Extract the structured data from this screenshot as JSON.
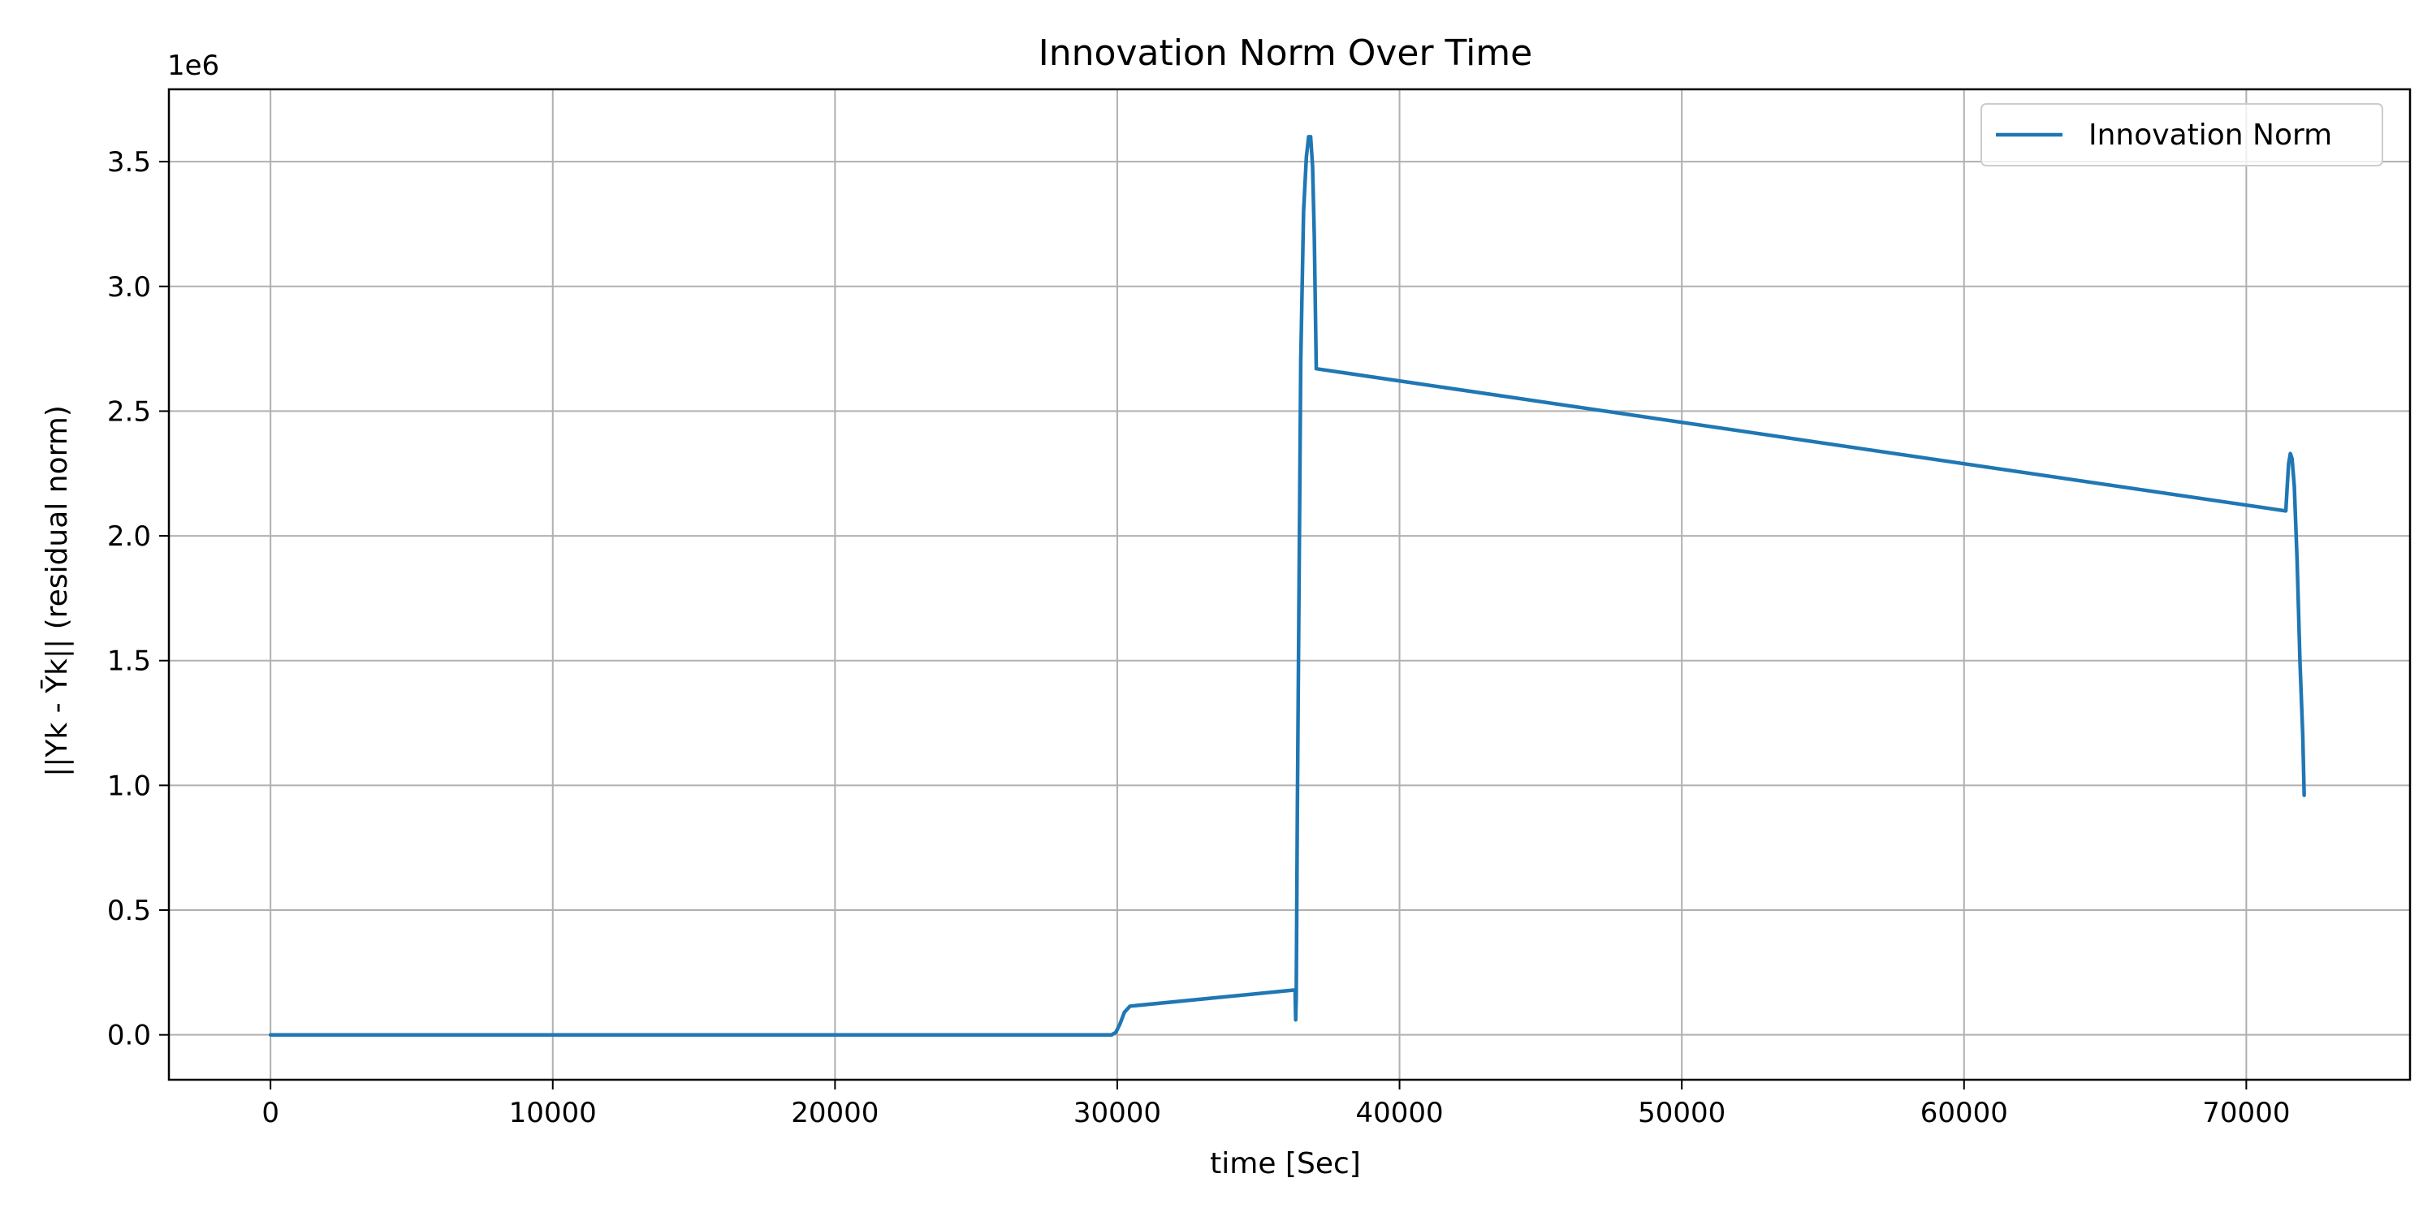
{
  "chart_data": {
    "type": "line",
    "title": "Innovation Norm Over Time",
    "xlabel": "time [Sec]",
    "ylabel": "||Yk - Ȳk|| (residual norm)",
    "y_offset_label": "1e6",
    "xlim": [
      -3600,
      75800
    ],
    "ylim": [
      -180000,
      3790000
    ],
    "x_ticks": [
      0,
      10000,
      20000,
      30000,
      40000,
      50000,
      60000,
      70000
    ],
    "x_tick_labels": [
      "0",
      "10000",
      "20000",
      "30000",
      "40000",
      "50000",
      "60000",
      "70000"
    ],
    "y_ticks": [
      0,
      500000,
      1000000,
      1500000,
      2000000,
      2500000,
      3000000,
      3500000
    ],
    "y_tick_labels": [
      "0.0",
      "0.5",
      "1.0",
      "1.5",
      "2.0",
      "2.5",
      "3.0",
      "3.5"
    ],
    "grid": true,
    "legend_position": "top-right",
    "series": [
      {
        "name": "Innovation Norm",
        "color": "#1f77b4",
        "x": [
          0,
          10000,
          20000,
          29800,
          29950,
          30100,
          30250,
          30450,
          36300,
          36320,
          36340,
          36380,
          36500,
          36600,
          36700,
          36780,
          36850,
          36920,
          36980,
          37050,
          71400,
          71450,
          71500,
          71560,
          71620,
          71700,
          71800,
          71900,
          72000,
          72050
        ],
        "values": [
          0,
          0,
          0,
          0,
          10000,
          45000,
          90000,
          115000,
          180000,
          60000,
          150000,
          900000,
          2700000,
          3300000,
          3520000,
          3600000,
          3600000,
          3480000,
          3200000,
          2670000,
          2100000,
          2200000,
          2290000,
          2330000,
          2310000,
          2200000,
          1900000,
          1500000,
          1200000,
          960000
        ]
      }
    ]
  }
}
